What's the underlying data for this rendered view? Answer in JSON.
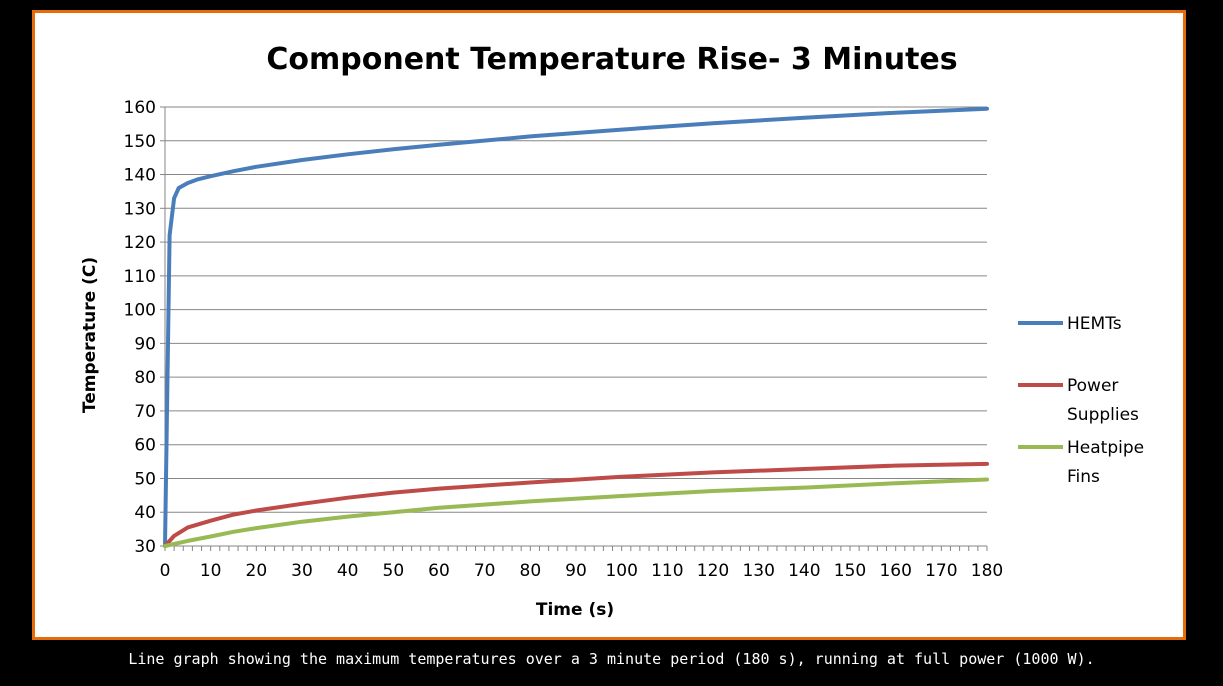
{
  "chart_data": {
    "type": "line",
    "title": "Component Temperature Rise- 3 Minutes",
    "xlabel": "Time (s)",
    "ylabel": "Temperature (C)",
    "xlim": [
      0,
      180
    ],
    "ylim": [
      30,
      160
    ],
    "x_ticks": [
      0,
      10,
      20,
      30,
      40,
      50,
      60,
      70,
      80,
      90,
      100,
      110,
      120,
      130,
      140,
      150,
      160,
      170,
      180
    ],
    "y_ticks": [
      30,
      40,
      50,
      60,
      70,
      80,
      90,
      100,
      110,
      120,
      130,
      140,
      150,
      160
    ],
    "grid": true,
    "legend_position": "right",
    "series": [
      {
        "name": "HEMTs",
        "color": "#4a7ebb",
        "x": [
          0,
          1,
          2,
          3,
          5,
          7,
          10,
          15,
          20,
          30,
          40,
          50,
          60,
          80,
          100,
          120,
          140,
          160,
          180
        ],
        "y": [
          30,
          122,
          133,
          136,
          137.5,
          138.5,
          139.5,
          141,
          142.3,
          144.3,
          146,
          147.5,
          148.8,
          151.3,
          153.3,
          155.2,
          156.8,
          158.3,
          159.5
        ]
      },
      {
        "name": "Power Supplies",
        "color": "#be4b48",
        "x": [
          0,
          2,
          5,
          10,
          15,
          20,
          30,
          40,
          50,
          60,
          80,
          100,
          120,
          140,
          160,
          180
        ],
        "y": [
          30,
          33,
          35.5,
          37.5,
          39.3,
          40.5,
          42.5,
          44.3,
          45.8,
          47,
          48.8,
          50.5,
          51.8,
          52.8,
          53.8,
          54.3
        ]
      },
      {
        "name": "Heatpipe Fins",
        "color": "#98b954",
        "x": [
          0,
          5,
          10,
          15,
          20,
          30,
          40,
          50,
          60,
          80,
          100,
          120,
          140,
          160,
          180
        ],
        "y": [
          30,
          31.5,
          32.8,
          34.2,
          35.3,
          37.2,
          38.7,
          40,
          41.3,
          43.2,
          44.8,
          46.3,
          47.3,
          48.6,
          49.7
        ]
      }
    ]
  },
  "caption": "Line graph showing the maximum temperatures over a 3 minute period (180 s), running at full power (1000 W)."
}
